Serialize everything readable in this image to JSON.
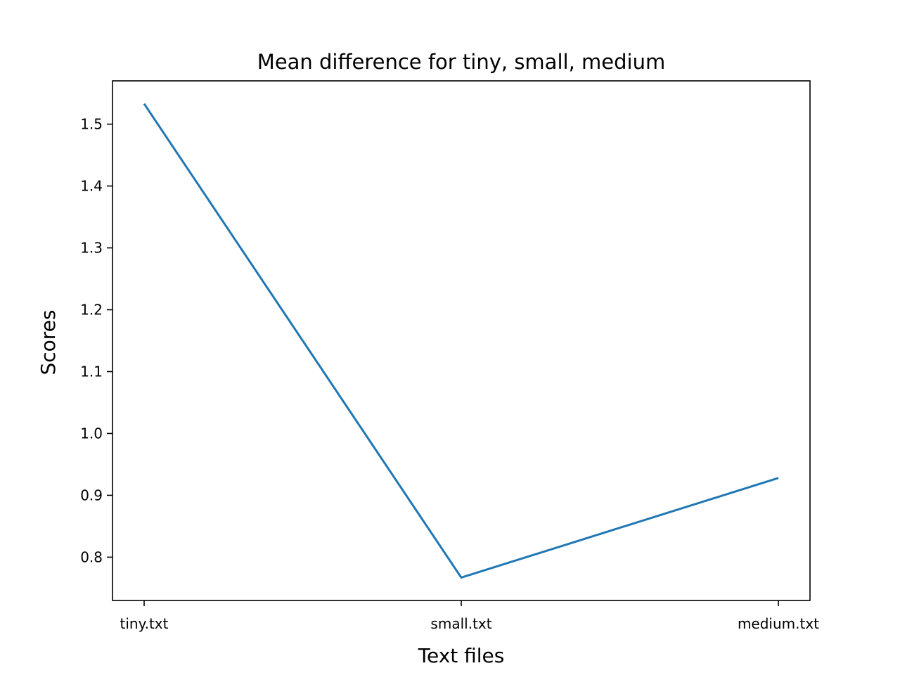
{
  "chart_data": {
    "type": "line",
    "title": "Mean difference for tiny, small, medium",
    "xlabel": "Text files",
    "ylabel": "Scores",
    "categories": [
      "tiny.txt",
      "small.txt",
      "medium.txt"
    ],
    "series": [
      {
        "values": [
          1.533,
          0.767,
          0.928
        ],
        "color": "#1f77b4"
      }
    ],
    "ylim": [
      0.73,
      1.57
    ],
    "yticks": [
      0.8,
      0.9,
      1.0,
      1.1,
      1.2,
      1.3,
      1.4,
      1.5
    ],
    "ytick_labels": [
      "0.8",
      "0.9",
      "1.0",
      "1.1",
      "1.2",
      "1.3",
      "1.4",
      "1.5"
    ],
    "grid": false,
    "legend": "none"
  }
}
